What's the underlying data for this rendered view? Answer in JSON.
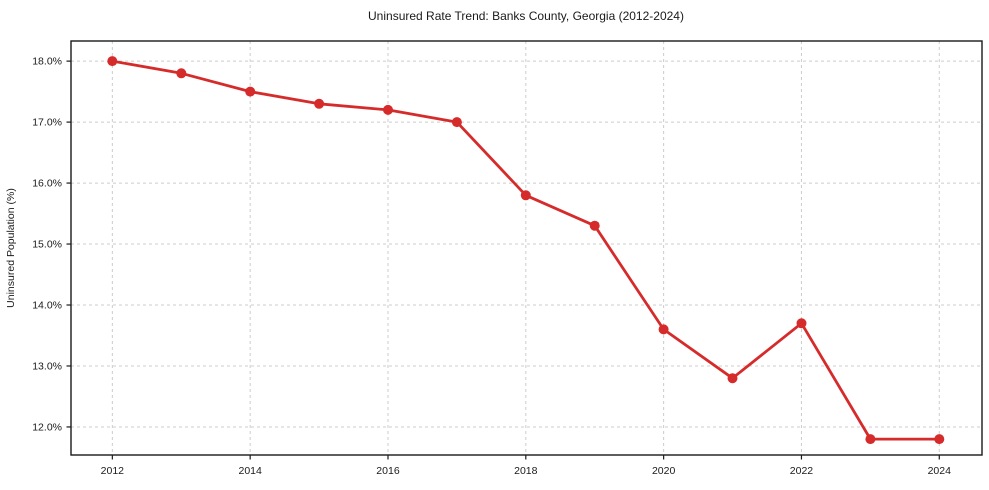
{
  "page": {
    "background_color": "#ffffff"
  },
  "chart_data": {
    "type": "line",
    "title": "Uninsured Rate Trend: Banks County, Georgia (2012-2024)",
    "xlabel": "",
    "ylabel": "Uninsured Population (%)",
    "series": [
      {
        "name": "Uninsured rate",
        "x": [
          2012,
          2013,
          2014,
          2015,
          2016,
          2017,
          2018,
          2019,
          2020,
          2021,
          2022,
          2023,
          2024
        ],
        "values": [
          18.0,
          17.8,
          17.5,
          17.3,
          17.2,
          17.0,
          15.8,
          15.3,
          13.6,
          12.8,
          13.7,
          11.8,
          11.8
        ],
        "color": "#d62b2b",
        "marker": "circle"
      }
    ],
    "x_ticks": [
      2012,
      2014,
      2016,
      2018,
      2020,
      2022,
      2024
    ],
    "x_tick_labels": [
      "2012",
      "2014",
      "2016",
      "2018",
      "2020",
      "2022",
      "2024"
    ],
    "y_ticks": [
      12.0,
      13.0,
      14.0,
      15.0,
      16.0,
      17.0,
      18.0
    ],
    "y_tick_labels": [
      "12.0%",
      "13.0%",
      "14.0%",
      "15.0%",
      "16.0%",
      "17.0%",
      "18.0%"
    ],
    "xlim": [
      2011.4,
      2024.62
    ],
    "ylim": [
      11.54,
      18.33
    ],
    "grid": true,
    "grid_color": "#cccccc",
    "grid_style": "dashed",
    "spine_color": "#1a1a1a",
    "legend_position": "none",
    "plot_background": "#ffffff"
  }
}
